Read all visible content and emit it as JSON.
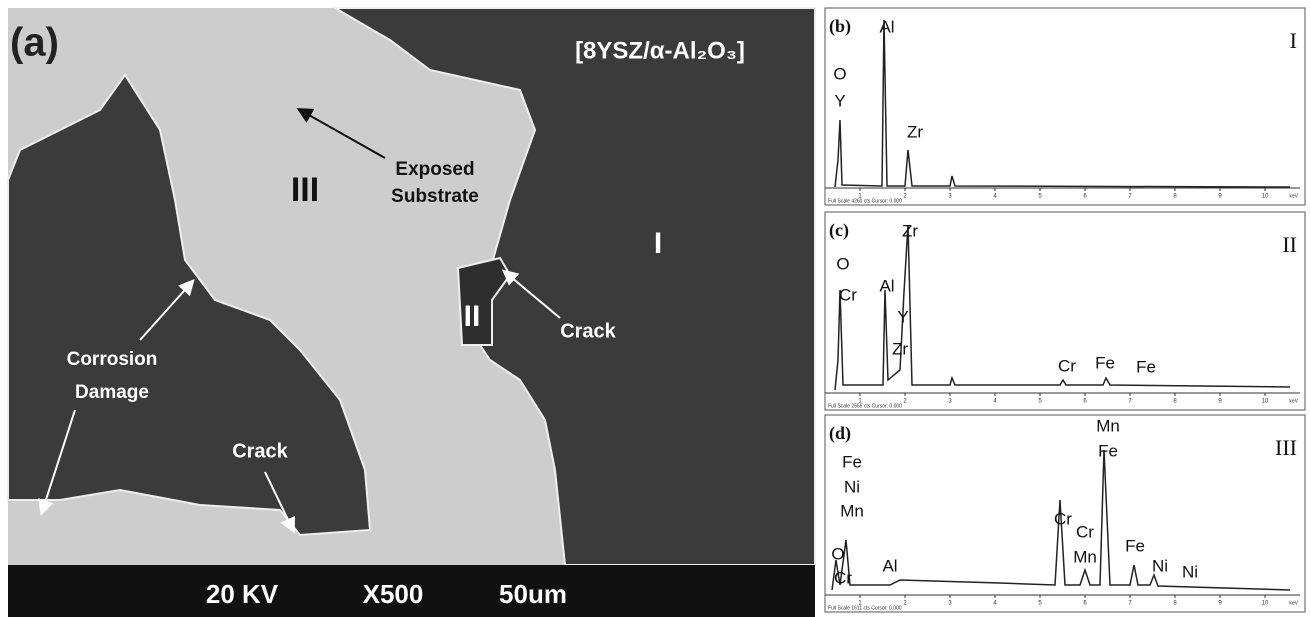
{
  "sem_image": {
    "panel_label": "(a)",
    "sample": "[8YSZ/α-Al₂O₃]",
    "regions": [
      "I",
      "II",
      "III"
    ],
    "exposed_substrate": [
      "Exposed",
      "Substrate"
    ],
    "corrosion_damage": [
      "Corrosion",
      "Damage"
    ],
    "crack_labels": [
      "Crack",
      "Crack"
    ],
    "scale_bar": [
      "20 KV",
      "X500",
      "50um"
    ]
  },
  "spectra": {
    "x_ticks": [
      "1",
      "2",
      "3",
      "4",
      "5",
      "6",
      "7",
      "8",
      "9",
      "10"
    ],
    "unit": "keV",
    "panels": [
      {
        "panel_label": "(b)",
        "region": "I",
        "footer": "Full Scale 4260 cts Cursor: 0.000",
        "peaks": [
          "Al",
          "O",
          "Y",
          "Zr"
        ]
      },
      {
        "panel_label": "(c)",
        "region": "II",
        "footer": "Full Scale 2565 cts Cursor: 0.000",
        "peaks": [
          "Zr",
          "O",
          "Cr",
          "Al",
          "Y",
          "Zr",
          "Cr",
          "Fe",
          "Fe"
        ]
      },
      {
        "panel_label": "(d)",
        "region": "III",
        "footer": "Full Scale 1611 cts Cursor: 0.000",
        "peaks": [
          "Mn",
          "Fe",
          "Fe",
          "Ni",
          "Mn",
          "O",
          "Cr",
          "Al",
          "Cr",
          "Cr",
          "Mn",
          "Fe",
          "Ni",
          "Ni"
        ]
      }
    ]
  }
}
